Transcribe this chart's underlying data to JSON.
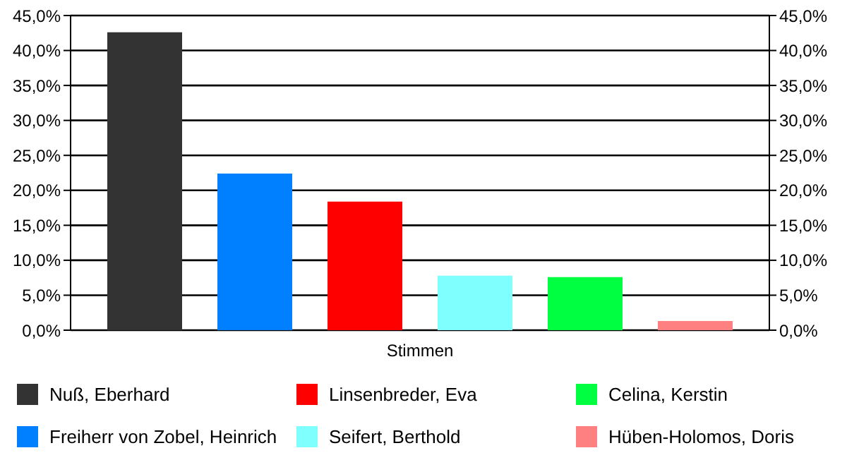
{
  "chart_data": {
    "type": "bar",
    "categories": [
      "Stimmen"
    ],
    "series": [
      {
        "name": "Nuß, Eberhard",
        "color": "#333333",
        "values": [
          42.6
        ]
      },
      {
        "name": "Freiherr von Zobel, Heinrich",
        "color": "#0080ff",
        "values": [
          22.4
        ]
      },
      {
        "name": "Linsenbreder, Eva",
        "color": "#ff0000",
        "values": [
          18.4
        ]
      },
      {
        "name": "Seifert, Berthold",
        "color": "#80ffff",
        "values": [
          7.8
        ]
      },
      {
        "name": "Celina, Kerstin",
        "color": "#00ff40",
        "values": [
          7.6
        ]
      },
      {
        "name": "Hüben-Holomos, Doris",
        "color": "#ff8080",
        "values": [
          1.3
        ]
      }
    ],
    "ylim": [
      0,
      45
    ],
    "yticks": [
      {
        "value": 0,
        "label": "0,0%"
      },
      {
        "value": 5,
        "label": "5,0%"
      },
      {
        "value": 10,
        "label": "10,0%"
      },
      {
        "value": 15,
        "label": "15,0%"
      },
      {
        "value": 20,
        "label": "20,0%"
      },
      {
        "value": 25,
        "label": "25,0%"
      },
      {
        "value": 30,
        "label": "30,0%"
      },
      {
        "value": 35,
        "label": "35,0%"
      },
      {
        "value": 40,
        "label": "40,0%"
      },
      {
        "value": 45,
        "label": "45,0%"
      }
    ],
    "grid": "y",
    "legend": "bottom"
  }
}
